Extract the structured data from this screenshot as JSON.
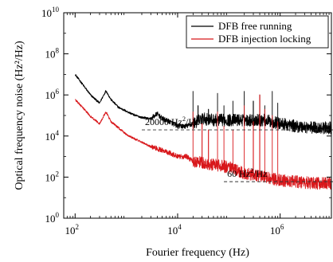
{
  "chart_data": {
    "type": "line",
    "xlabel": "Fourier frequency (Hz)",
    "ylabel": "Optical frequency noise (Hz²/Hz)",
    "xscale": "log",
    "yscale": "log",
    "xlim": [
      60,
      10000000
    ],
    "ylim": [
      1,
      10000000000
    ],
    "grid": false,
    "legend_position": "top-right",
    "x_ticks": [
      {
        "value": 100,
        "base": "10",
        "exp": "2"
      },
      {
        "value": 10000,
        "base": "10",
        "exp": "4"
      },
      {
        "value": 1000000,
        "base": "10",
        "exp": "6"
      }
    ],
    "y_ticks": [
      {
        "value": 1,
        "base": "10",
        "exp": "0"
      },
      {
        "value": 100,
        "base": "10",
        "exp": "2"
      },
      {
        "value": 10000,
        "base": "10",
        "exp": "4"
      },
      {
        "value": 1000000,
        "base": "10",
        "exp": "6"
      },
      {
        "value": 100000000,
        "base": "10",
        "exp": "8"
      },
      {
        "value": 10000000000,
        "base": "10",
        "exp": "10"
      }
    ],
    "series": [
      {
        "name": "DFB free running",
        "color": "#000000",
        "points": [
          [
            100,
            10000000
          ],
          [
            150,
            2600000
          ],
          [
            200,
            1000000
          ],
          [
            300,
            400000
          ],
          [
            400,
            1600000
          ],
          [
            500,
            600000
          ],
          [
            700,
            250000
          ],
          [
            1000,
            160000
          ],
          [
            1500,
            100000
          ],
          [
            2000,
            80000
          ],
          [
            3000,
            70000
          ],
          [
            4000,
            120000
          ],
          [
            5000,
            70000
          ],
          [
            7000,
            50000
          ],
          [
            10000,
            30000
          ],
          [
            15000,
            30000
          ],
          [
            20000,
            40000
          ],
          [
            30000,
            70000
          ],
          [
            50000,
            60000
          ],
          [
            100000,
            60000
          ],
          [
            200000,
            60000
          ],
          [
            500000,
            60000
          ],
          [
            1000000,
            40000
          ],
          [
            2000000,
            30000
          ],
          [
            5000000,
            25000
          ],
          [
            10000000,
            25000
          ]
        ],
        "peaks": [
          [
            20000,
            1500000
          ],
          [
            25000,
            300000
          ],
          [
            40000,
            200000
          ],
          [
            60000,
            1200000
          ],
          [
            80000,
            300000
          ],
          [
            120000,
            500000
          ],
          [
            200000,
            1500000
          ],
          [
            300000,
            500000
          ],
          [
            400000,
            1000000
          ],
          [
            500000,
            300000
          ],
          [
            700000,
            1500000
          ],
          [
            900000,
            400000
          ]
        ]
      },
      {
        "name": "DFB injection locking",
        "color": "#d8171b",
        "points": [
          [
            100,
            600000
          ],
          [
            150,
            200000
          ],
          [
            200,
            90000
          ],
          [
            300,
            40000
          ],
          [
            400,
            150000
          ],
          [
            500,
            50000
          ],
          [
            700,
            25000
          ],
          [
            1000,
            12000
          ],
          [
            1500,
            7000
          ],
          [
            2000,
            5000
          ],
          [
            3000,
            3000
          ],
          [
            5000,
            2000
          ],
          [
            7000,
            1500
          ],
          [
            10000,
            1000
          ],
          [
            15000,
            1000
          ],
          [
            20000,
            600
          ],
          [
            30000,
            500
          ],
          [
            50000,
            400
          ],
          [
            100000,
            300
          ],
          [
            200000,
            150
          ],
          [
            500000,
            100
          ],
          [
            1000000,
            70
          ],
          [
            2000000,
            60
          ],
          [
            5000000,
            50
          ],
          [
            10000000,
            50
          ]
        ],
        "peaks": [
          [
            20000,
            150000
          ],
          [
            30000,
            40000
          ],
          [
            40000,
            20000
          ],
          [
            60000,
            150000
          ],
          [
            80000,
            30000
          ],
          [
            120000,
            20000
          ],
          [
            200000,
            300000
          ],
          [
            300000,
            50000
          ],
          [
            400000,
            1000000
          ],
          [
            500000,
            200000
          ],
          [
            700000,
            100000
          ],
          [
            900000,
            50000
          ]
        ]
      }
    ],
    "annotations": [
      {
        "label": "20000 Hz²/Hz",
        "text": "20000 Hz",
        "sup": "2",
        "suffix": "/Hz",
        "y": 20000,
        "x_start": 2000,
        "x_end": 1000000
      },
      {
        "label": "60 Hz²/Hz",
        "text": "60 Hz",
        "sup": "2",
        "suffix": "/Hz",
        "y": 60,
        "x_start": 80000,
        "x_end": 1000000
      }
    ]
  }
}
